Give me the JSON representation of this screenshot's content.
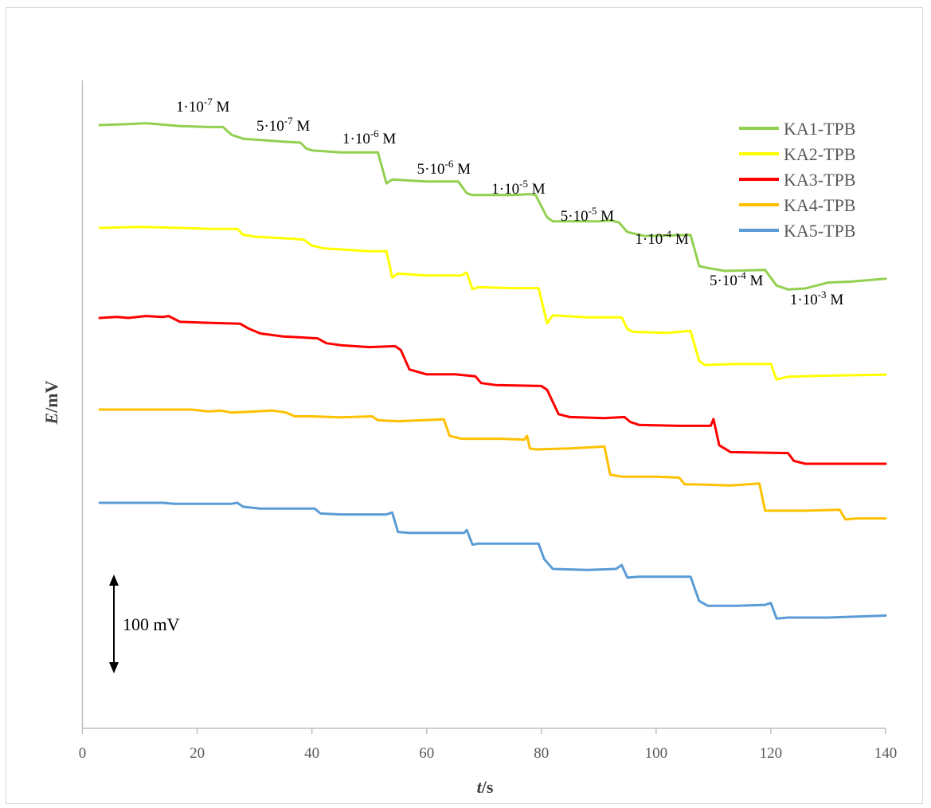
{
  "chart_data": {
    "type": "line",
    "xlabel_italic": "t",
    "xlabel_unit": "/s",
    "ylabel_italic": "E",
    "ylabel_unit": "/mV",
    "xlim": [
      0,
      140
    ],
    "x_ticks": [
      0,
      20,
      40,
      60,
      80,
      100,
      120,
      140
    ],
    "grid": false,
    "legend_position": "top-right",
    "y_relative_unit": "mV",
    "scale_bar": {
      "label": "100 mV",
      "value": 100
    },
    "series": [
      {
        "name": "KA1-TPB",
        "color": "#92d050",
        "points": [
          [
            3,
            0
          ],
          [
            8,
            1
          ],
          [
            11,
            2
          ],
          [
            13,
            1
          ],
          [
            17,
            -1
          ],
          [
            22,
            -2
          ],
          [
            24.5,
            -2
          ],
          [
            26,
            -10
          ],
          [
            28,
            -14
          ],
          [
            35,
            -17
          ],
          [
            38,
            -18
          ],
          [
            39,
            -24
          ],
          [
            40,
            -26
          ],
          [
            45,
            -28
          ],
          [
            51.5,
            -28
          ],
          [
            53,
            -60
          ],
          [
            54,
            -56
          ],
          [
            60,
            -58
          ],
          [
            65.5,
            -58
          ],
          [
            67,
            -70
          ],
          [
            68,
            -72
          ],
          [
            75,
            -72
          ],
          [
            78,
            -71
          ],
          [
            79,
            -72
          ],
          [
            81,
            -95
          ],
          [
            82,
            -99
          ],
          [
            90,
            -99
          ],
          [
            92,
            -98
          ],
          [
            93.5,
            -100
          ],
          [
            95,
            -110
          ],
          [
            98,
            -114
          ],
          [
            106,
            -113
          ],
          [
            107.5,
            -145
          ],
          [
            109,
            -147
          ],
          [
            112,
            -150
          ],
          [
            119,
            -149
          ],
          [
            121,
            -165
          ],
          [
            123,
            -169
          ],
          [
            126,
            -168
          ],
          [
            130,
            -162
          ],
          [
            134,
            -161
          ],
          [
            140,
            -158
          ]
        ]
      },
      {
        "name": "KA2-TPB",
        "color": "#ffff00",
        "points": [
          [
            3,
            0
          ],
          [
            10,
            1
          ],
          [
            17,
            0
          ],
          [
            22,
            -1
          ],
          [
            27,
            -1
          ],
          [
            28,
            -7
          ],
          [
            30,
            -9
          ],
          [
            36,
            -11
          ],
          [
            38.5,
            -12
          ],
          [
            40,
            -18
          ],
          [
            42,
            -21
          ],
          [
            50,
            -24
          ],
          [
            53,
            -24
          ],
          [
            54,
            -51
          ],
          [
            55,
            -47
          ],
          [
            60,
            -49
          ],
          [
            66,
            -49
          ],
          [
            67,
            -46
          ],
          [
            68,
            -63
          ],
          [
            69,
            -61
          ],
          [
            75,
            -62
          ],
          [
            79.5,
            -62
          ],
          [
            81,
            -98
          ],
          [
            82,
            -90
          ],
          [
            88,
            -92
          ],
          [
            94,
            -92
          ],
          [
            95,
            -104
          ],
          [
            96,
            -107
          ],
          [
            102,
            -108
          ],
          [
            106,
            -106
          ],
          [
            107.5,
            -137
          ],
          [
            108.5,
            -141
          ],
          [
            114,
            -140
          ],
          [
            120,
            -140
          ],
          [
            121,
            -156
          ],
          [
            123,
            -153
          ],
          [
            130,
            -152
          ],
          [
            140,
            -151
          ]
        ]
      },
      {
        "name": "KA3-TPB",
        "color": "#ff0000",
        "points": [
          [
            3,
            0
          ],
          [
            6,
            1
          ],
          [
            8,
            0
          ],
          [
            11,
            2
          ],
          [
            14,
            1
          ],
          [
            15,
            2
          ],
          [
            17,
            -4
          ],
          [
            22,
            -5
          ],
          [
            27.5,
            -6
          ],
          [
            29,
            -11
          ],
          [
            31,
            -16
          ],
          [
            35,
            -19
          ],
          [
            41,
            -21
          ],
          [
            42.5,
            -26
          ],
          [
            45,
            -28
          ],
          [
            50,
            -30
          ],
          [
            54.5,
            -29
          ],
          [
            55.5,
            -33
          ],
          [
            57,
            -53
          ],
          [
            60,
            -58
          ],
          [
            65,
            -58
          ],
          [
            68.5,
            -60
          ],
          [
            69.5,
            -67
          ],
          [
            72,
            -69
          ],
          [
            80,
            -70
          ],
          [
            81,
            -74
          ],
          [
            83,
            -99
          ],
          [
            85,
            -102
          ],
          [
            91,
            -103
          ],
          [
            94.5,
            -102
          ],
          [
            95.5,
            -107
          ],
          [
            97,
            -110
          ],
          [
            104,
            -111
          ],
          [
            109.5,
            -111
          ],
          [
            110,
            -104
          ],
          [
            111,
            -131
          ],
          [
            113,
            -138
          ],
          [
            123,
            -139
          ],
          [
            124,
            -147
          ],
          [
            126,
            -150
          ],
          [
            140,
            -150
          ]
        ]
      },
      {
        "name": "KA4-TPB",
        "color": "#ffc000",
        "points": [
          [
            3,
            0
          ],
          [
            10,
            0
          ],
          [
            19,
            0
          ],
          [
            22,
            -2
          ],
          [
            24,
            -1
          ],
          [
            26,
            -3
          ],
          [
            30,
            -2
          ],
          [
            33,
            -1
          ],
          [
            35.5,
            -3
          ],
          [
            37,
            -7
          ],
          [
            40,
            -7
          ],
          [
            45,
            -8
          ],
          [
            50.5,
            -7
          ],
          [
            51.5,
            -11
          ],
          [
            55,
            -12
          ],
          [
            63,
            -10
          ],
          [
            64,
            -27
          ],
          [
            66,
            -30
          ],
          [
            73,
            -30
          ],
          [
            77,
            -31
          ],
          [
            77.5,
            -27
          ],
          [
            78,
            -40
          ],
          [
            79,
            -41
          ],
          [
            85,
            -40
          ],
          [
            91,
            -38
          ],
          [
            92,
            -67
          ],
          [
            94,
            -69
          ],
          [
            100,
            -69
          ],
          [
            104,
            -70
          ],
          [
            105,
            -77
          ],
          [
            107,
            -77
          ],
          [
            113,
            -78
          ],
          [
            118,
            -76
          ],
          [
            119,
            -104
          ],
          [
            121,
            -104
          ],
          [
            126,
            -104
          ],
          [
            132,
            -103
          ],
          [
            133,
            -113
          ],
          [
            135,
            -112
          ],
          [
            140,
            -112
          ]
        ]
      },
      {
        "name": "KA5-TPB",
        "color": "#5b9bd5",
        "points": [
          [
            3,
            0
          ],
          [
            10,
            0
          ],
          [
            14,
            0
          ],
          [
            16,
            -1
          ],
          [
            22,
            -1
          ],
          [
            26,
            -1
          ],
          [
            27,
            0
          ],
          [
            28,
            -4
          ],
          [
            31,
            -6
          ],
          [
            36,
            -6
          ],
          [
            40.5,
            -6
          ],
          [
            41.5,
            -11
          ],
          [
            45,
            -12
          ],
          [
            49,
            -12
          ],
          [
            53,
            -12
          ],
          [
            54,
            -10
          ],
          [
            55,
            -30
          ],
          [
            57,
            -31
          ],
          [
            62,
            -31
          ],
          [
            66.5,
            -31
          ],
          [
            67,
            -28
          ],
          [
            68,
            -43
          ],
          [
            69,
            -42
          ],
          [
            75,
            -42
          ],
          [
            79.5,
            -42
          ],
          [
            80.5,
            -58
          ],
          [
            82,
            -68
          ],
          [
            88,
            -69
          ],
          [
            93,
            -68
          ],
          [
            94,
            -64
          ],
          [
            95,
            -77
          ],
          [
            97,
            -76
          ],
          [
            103,
            -76
          ],
          [
            106,
            -76
          ],
          [
            107.5,
            -101
          ],
          [
            109,
            -106
          ],
          [
            114,
            -106
          ],
          [
            119,
            -105
          ],
          [
            120,
            -103
          ],
          [
            121,
            -119
          ],
          [
            123,
            -118
          ],
          [
            130,
            -118
          ],
          [
            140,
            -116
          ]
        ]
      }
    ],
    "annotations": [
      {
        "base": "1·10",
        "exp": "-7",
        "suffix": " M",
        "x": 21
      },
      {
        "base": "5·10",
        "exp": "-7",
        "suffix": " M",
        "x": 35
      },
      {
        "base": "1·10",
        "exp": "-6",
        "suffix": " M",
        "x": 50
      },
      {
        "base": "5·10",
        "exp": "-6",
        "suffix": " M",
        "x": 63
      },
      {
        "base": "1·10",
        "exp": "-5",
        "suffix": " M",
        "x": 76
      },
      {
        "base": "5·10",
        "exp": "-5",
        "suffix": " M",
        "x": 88
      },
      {
        "base": "1·10",
        "exp": "-4",
        "suffix": " M",
        "x": 101
      },
      {
        "base": "5·10",
        "exp": "-4",
        "suffix": " M",
        "x": 114
      },
      {
        "base": "1·10",
        "exp": "-3",
        "suffix": " M",
        "x": 128
      }
    ]
  }
}
